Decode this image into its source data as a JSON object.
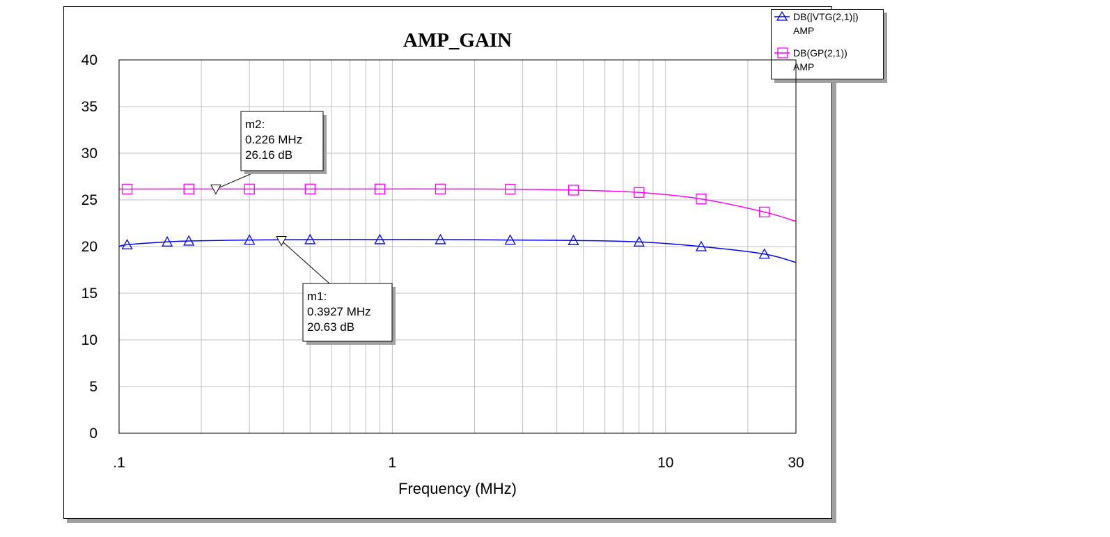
{
  "chart_data": {
    "type": "line",
    "title": "AMP_GAIN",
    "xlabel": "Frequency (MHz)",
    "ylabel": "",
    "xscale": "log",
    "xlim": [
      0.1,
      30
    ],
    "ylim": [
      0,
      40
    ],
    "x_ticks": [
      {
        "value": 0.1,
        "label": ".1"
      },
      {
        "value": 1,
        "label": "1"
      },
      {
        "value": 10,
        "label": "10"
      },
      {
        "value": 30,
        "label": "30"
      }
    ],
    "y_ticks": [
      0,
      5,
      10,
      15,
      20,
      25,
      30,
      35,
      40
    ],
    "grid": true,
    "legend_position": "top-right",
    "series": [
      {
        "name": "DB(|VTG(2,1)|)",
        "sub": "AMP",
        "color": "#0000ff",
        "marker": "triangle",
        "x": [
          0.1,
          0.107,
          0.15,
          0.18,
          0.3,
          0.5,
          0.9,
          1.5,
          2.7,
          4.6,
          8.0,
          13.5,
          23.0,
          30.0
        ],
        "y": [
          20.0,
          20.2,
          20.5,
          20.6,
          20.7,
          20.75,
          20.75,
          20.75,
          20.7,
          20.65,
          20.5,
          20.0,
          19.2,
          18.3
        ]
      },
      {
        "name": "DB(GP(2,1))",
        "sub": "AMP",
        "color": "#ff00ff",
        "marker": "square",
        "x": [
          0.1,
          0.107,
          0.18,
          0.3,
          0.5,
          0.9,
          1.5,
          2.7,
          4.6,
          8.0,
          13.5,
          23.0,
          30.0
        ],
        "y": [
          26.16,
          26.16,
          26.17,
          26.17,
          26.17,
          26.17,
          26.17,
          26.15,
          26.05,
          25.8,
          25.1,
          23.7,
          22.7
        ]
      }
    ],
    "markers": [
      {
        "name": "m2",
        "freq": "0.226 MHz",
        "value": "26.16 dB",
        "x": 0.226,
        "y": 26.16
      },
      {
        "name": "m1",
        "freq": "0.3927 MHz",
        "value": "20.63 dB",
        "x": 0.3927,
        "y": 20.63
      }
    ]
  }
}
